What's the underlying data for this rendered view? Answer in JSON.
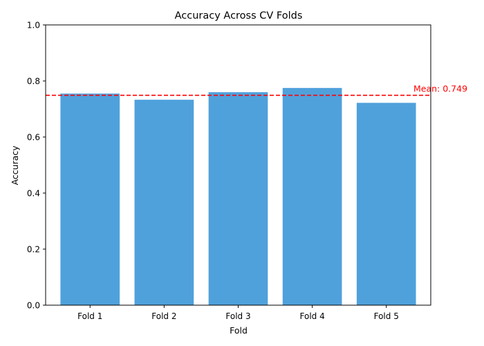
{
  "chart_data": {
    "type": "bar",
    "title": "Accuracy Across CV Folds",
    "xlabel": "Fold",
    "ylabel": "Accuracy",
    "categories": [
      "Fold 1",
      "Fold 2",
      "Fold 3",
      "Fold 4",
      "Fold 5"
    ],
    "values": [
      0.755,
      0.733,
      0.76,
      0.775,
      0.722
    ],
    "ylim": [
      0,
      1.0
    ],
    "yticks": [
      0.0,
      0.2,
      0.4,
      0.6,
      0.8,
      1.0
    ],
    "ytick_labels": [
      "0.0",
      "0.2",
      "0.4",
      "0.6",
      "0.8",
      "1.0"
    ],
    "grid": false,
    "reference_line": {
      "value": 0.749,
      "label": "Mean: 0.749",
      "style": "dashed"
    },
    "colors": {
      "bar": "#4fa1dc",
      "mean_line": "#ff0000",
      "axis": "#000000"
    }
  }
}
